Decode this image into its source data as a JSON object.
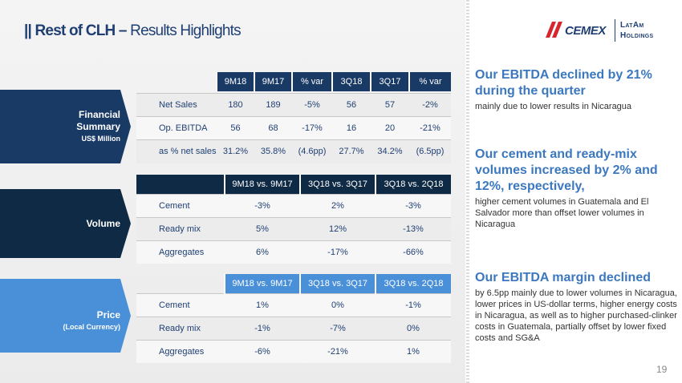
{
  "title": {
    "bold": "|| Rest of CLH –",
    "light": " Results Highlights"
  },
  "logo": {
    "brand": "CEMEX",
    "line1": "LatAm",
    "line2": "Holdings"
  },
  "sections": {
    "financial": {
      "title_line1": "Financial",
      "title_line2": "Summary",
      "subtitle": "US$ Million"
    },
    "volume": {
      "title": "Volume"
    },
    "price": {
      "title": "Price",
      "subtitle": "(Local Currency)"
    }
  },
  "financial_table": {
    "headers": [
      "9M18",
      "9M17",
      "% var",
      "3Q18",
      "3Q17",
      "% var"
    ],
    "rows": [
      {
        "label": "Net Sales",
        "values": [
          "180",
          "189",
          "-5%",
          "56",
          "57",
          "-2%"
        ]
      },
      {
        "label": "Op. EBITDA",
        "values": [
          "56",
          "68",
          "-17%",
          "16",
          "20",
          "-21%"
        ]
      },
      {
        "label": "as % net sales",
        "values": [
          "31.2%",
          "35.8%",
          "(4.6pp)",
          "27.7%",
          "34.2%",
          "(6.5pp)"
        ]
      }
    ]
  },
  "volume_table": {
    "headers": [
      "9M18 vs. 9M17",
      "3Q18 vs. 3Q17",
      "3Q18 vs. 2Q18"
    ],
    "rows": [
      {
        "label": "Cement",
        "values": [
          "-3%",
          "2%",
          "-3%"
        ]
      },
      {
        "label": "Ready mix",
        "values": [
          "5%",
          "12%",
          "-13%"
        ]
      },
      {
        "label": "Aggregates",
        "values": [
          "6%",
          "-17%",
          "-66%"
        ]
      }
    ]
  },
  "price_table": {
    "headers": [
      "9M18 vs. 9M17",
      "3Q18 vs. 3Q17",
      "3Q18 vs. 2Q18"
    ],
    "rows": [
      {
        "label": "Cement",
        "values": [
          "1%",
          "0%",
          "-1%"
        ]
      },
      {
        "label": "Ready mix",
        "values": [
          "-1%",
          "-7%",
          "0%"
        ]
      },
      {
        "label": "Aggregates",
        "values": [
          "-6%",
          "-21%",
          "1%"
        ]
      }
    ]
  },
  "highlights": [
    {
      "heading": "Our EBITDA declined by 21% during the quarter",
      "body": "mainly due to lower results in Nicaragua"
    },
    {
      "heading": "Our cement and ready-mix volumes increased by 2% and 12%, respectively,",
      "body": "higher cement volumes in Guatemala and El Salvador more than offset lower volumes in Nicaragua"
    },
    {
      "heading": "Our EBITDA margin declined",
      "body": "by 6.5pp mainly due to lower volumes in Nicaragua, lower prices in US-dollar terms, higher energy costs in Nicaragua, as well as to higher purchased-clinker costs in Guatemala, partially offset by lower fixed costs and SG&A"
    }
  ],
  "page_number": "19",
  "colors": {
    "navy": "#1a3a66",
    "accent_blue": "#3b78bf",
    "price_blue": "#4a90d9"
  }
}
